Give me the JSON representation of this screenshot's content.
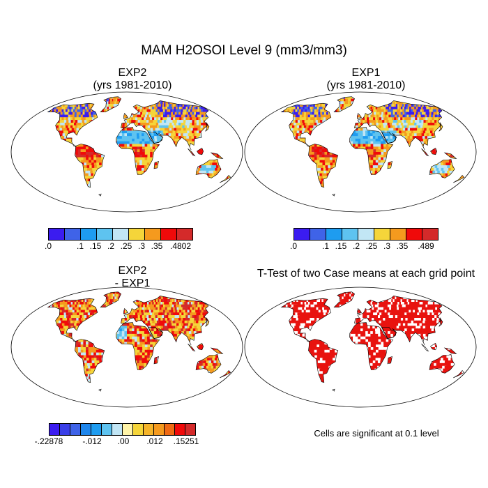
{
  "title": "MAM H2OSOI Level 9 (mm3/mm3)",
  "panels": [
    {
      "id": "exp2",
      "title_line1": "EXP2",
      "title_line2": "(yrs 1981-2010)"
    },
    {
      "id": "exp1",
      "title_line1": "EXP1",
      "title_line2": "(yrs 1981-2010)"
    },
    {
      "id": "diff",
      "title_line1": "EXP2",
      "title_line2": "- EXP1"
    },
    {
      "id": "ttest",
      "title_line1": "T-Test of two Case means at each grid point",
      "title_line2": ""
    }
  ],
  "colorbars": {
    "exp2": {
      "colors": [
        "#3b1cf0",
        "#3f63e8",
        "#1e9cf0",
        "#5ec3f0",
        "#c2e6f5",
        "#f5d53a",
        "#f59a1e",
        "#f00a0a",
        "#d42a2a"
      ],
      "labels": [
        ".0",
        ".1",
        ".15",
        ".2",
        ".25",
        ".3",
        ".35",
        ".4802"
      ]
    },
    "exp1": {
      "colors": [
        "#3b1cf0",
        "#3f63e8",
        "#1e9cf0",
        "#5ec3f0",
        "#c2e6f5",
        "#f5d53a",
        "#f59a1e",
        "#f00a0a",
        "#d42a2a"
      ],
      "labels": [
        ".0",
        ".1",
        ".15",
        ".2",
        ".25",
        ".3",
        ".35",
        ".489"
      ]
    },
    "diff": {
      "colors": [
        "#3b1cf0",
        "#3a3fe8",
        "#3f63e8",
        "#1e86ec",
        "#1e9cf0",
        "#5ec3f0",
        "#c2e6f5",
        "#fff4a8",
        "#f5d53a",
        "#f5b42a",
        "#f59a1e",
        "#f06a14",
        "#f00a0a",
        "#d42a2a"
      ],
      "labels": [
        "-.22878",
        "-.012",
        ".00",
        ".012",
        ".15251"
      ]
    }
  },
  "significance_note": "Cells are significant at 0.1 level",
  "palette": {
    "land_red": "#e8130f",
    "dry_blue": "#5ab4ec",
    "mid_yellow": "#f5d53a",
    "orange": "#f59a1e",
    "purple": "#3b1cf0"
  }
}
